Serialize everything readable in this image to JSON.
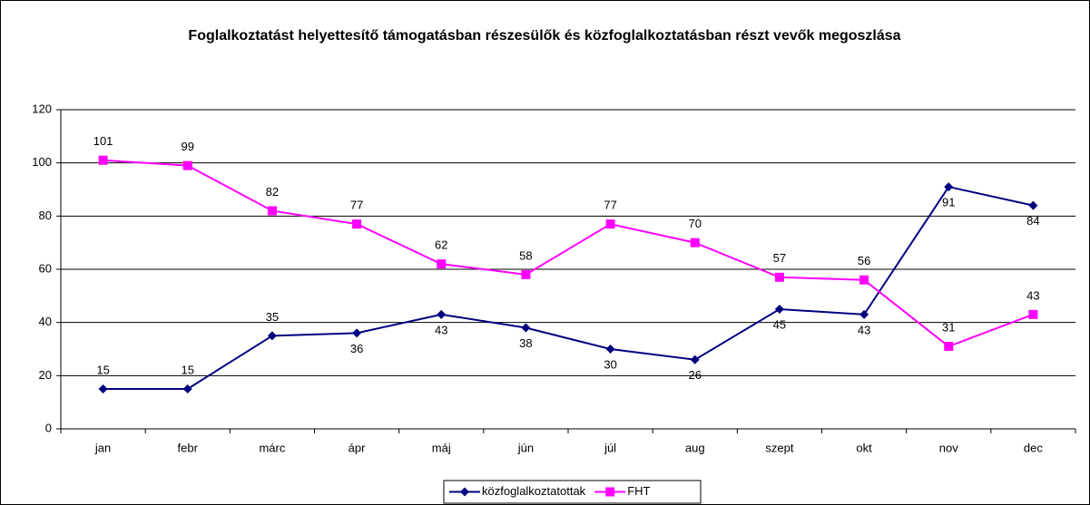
{
  "chart_data": {
    "type": "line",
    "title": "Foglalkoztatást helyettesítő támogatásban részesülők és közfoglalkoztatásban részt vevők megoszlása",
    "categories": [
      "jan",
      "febr",
      "márc",
      "ápr",
      "máj",
      "jún",
      "júl",
      "aug",
      "szept",
      "okt",
      "nov",
      "dec"
    ],
    "series": [
      {
        "name": "közfoglalkoztatottak",
        "color": "#000080",
        "marker": "diamond",
        "values": [
          15,
          15,
          35,
          36,
          43,
          38,
          30,
          26,
          45,
          43,
          91,
          84
        ]
      },
      {
        "name": "FHT",
        "color": "#ff00ff",
        "marker": "square",
        "values": [
          101,
          99,
          82,
          77,
          62,
          58,
          77,
          70,
          57,
          56,
          31,
          43
        ]
      }
    ],
    "ylim": [
      0,
      120
    ],
    "yticks": [
      0,
      20,
      40,
      60,
      80,
      100,
      120
    ],
    "grid": true,
    "legend": "bottom"
  }
}
